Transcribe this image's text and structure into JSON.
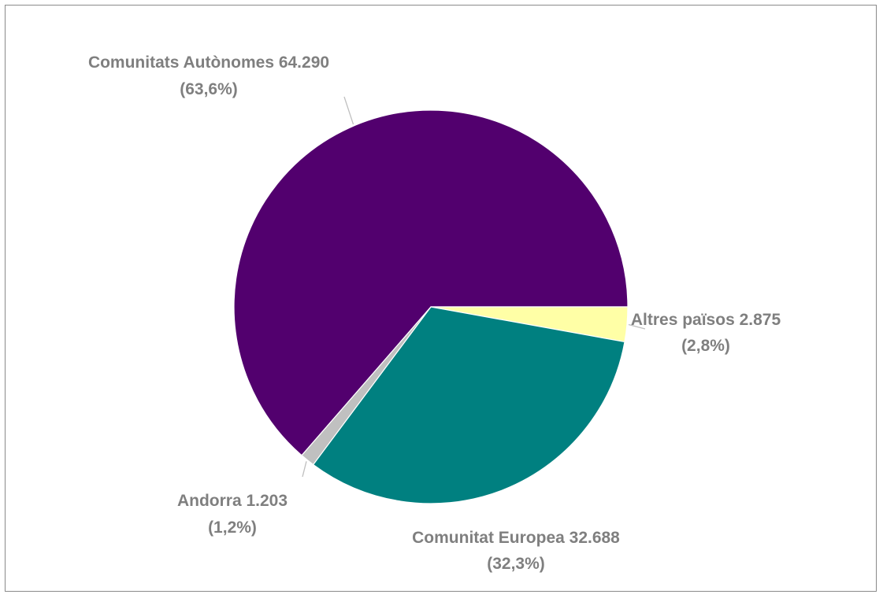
{
  "chart_data": {
    "type": "pie",
    "title": "",
    "slices": [
      {
        "name": "Comunitats Autònomes",
        "value": 64290,
        "value_text": "64.290",
        "percent_text": "(63,6%)",
        "color": "#52006e"
      },
      {
        "name": "Altres països",
        "value": 2875,
        "value_text": "2.875",
        "percent_text": "(2,8%)",
        "color": "#ffffa6"
      },
      {
        "name": "Comunitat Europea",
        "value": 32688,
        "value_text": "32.688",
        "percent_text": "(32,3%)",
        "color": "#008080"
      },
      {
        "name": "Andorra",
        "value": 1203,
        "value_text": "1.203",
        "percent_text": "(1,2%)",
        "color": "#c0c0c0"
      }
    ],
    "label_color": "#7f7f7f",
    "leader_line_color": "#bfbfbf",
    "legend": "none"
  }
}
